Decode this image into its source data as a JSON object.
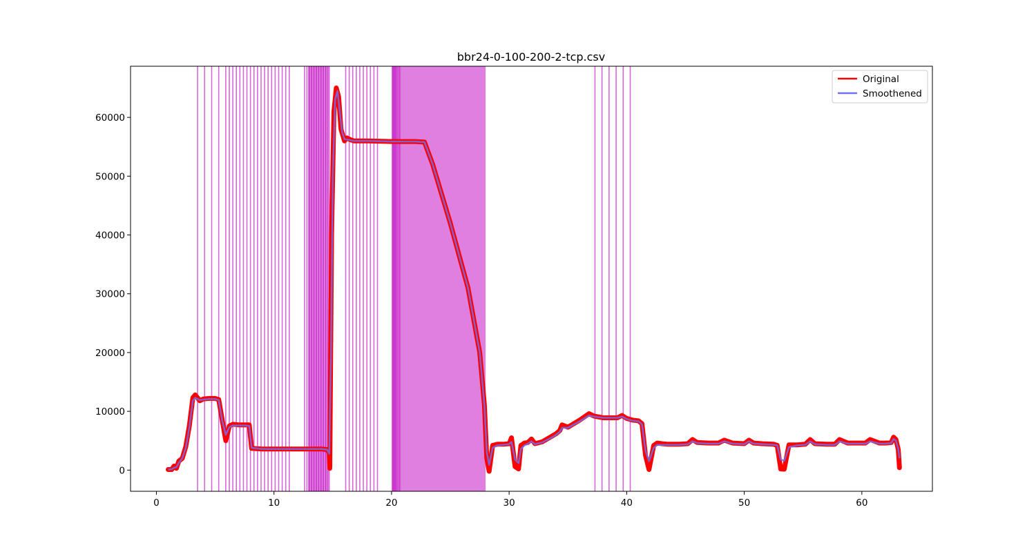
{
  "chart_data": {
    "type": "line",
    "title": "bbr24-0-100-200-2-tcp.csv",
    "xlabel": "",
    "ylabel": "",
    "xlim": [
      -2.2,
      66
    ],
    "ylim": [
      -3600,
      68700
    ],
    "x_ticks": [
      0,
      10,
      20,
      30,
      40,
      50,
      60
    ],
    "y_ticks": [
      0,
      10000,
      20000,
      30000,
      40000,
      50000,
      60000
    ],
    "grid": false,
    "legend": {
      "placement": "top-right",
      "entries": [
        "Original",
        "Smoothened"
      ]
    },
    "colors": {
      "original": "#ff0000",
      "smoothened": "#6f6ff0",
      "markers": "#bf00bf",
      "overlap": "#800080"
    },
    "series": [
      {
        "name": "Original",
        "x": [
          1.0,
          1.3,
          1.5,
          1.7,
          1.9,
          2.2,
          2.5,
          2.8,
          3.1,
          3.3,
          3.5,
          3.7,
          4.0,
          4.5,
          5.0,
          5.3,
          5.6,
          5.9,
          6.2,
          6.5,
          7.0,
          7.5,
          7.9,
          8.1,
          8.5,
          9.0,
          10.0,
          11.0,
          12.0,
          13.0,
          14.0,
          14.5,
          14.7,
          14.75,
          14.9,
          15.1,
          15.3,
          15.5,
          15.7,
          16.0,
          16.2,
          16.5,
          16.8,
          17.0,
          18.0,
          20.0,
          22.0,
          22.8,
          23.5,
          25.0,
          26.5,
          27.5,
          27.9,
          28.1,
          28.3,
          28.6,
          29.0,
          29.5,
          30.0,
          30.2,
          30.5,
          30.8,
          31.0,
          31.3,
          31.6,
          31.9,
          32.2,
          32.8,
          33.5,
          34.0,
          34.3,
          34.5,
          35.0,
          36.0,
          36.8,
          37.2,
          38.0,
          38.8,
          39.2,
          39.6,
          40.0,
          40.5,
          41.0,
          41.3,
          41.6,
          41.9,
          42.3,
          42.6,
          43.0,
          43.5,
          44.5,
          45.2,
          45.6,
          46.0,
          47.0,
          47.8,
          48.3,
          49.0,
          50.0,
          50.4,
          50.8,
          51.5,
          52.5,
          52.8,
          53.1,
          53.4,
          53.8,
          54.5,
          55.2,
          55.6,
          56.0,
          57.0,
          57.7,
          58.1,
          58.8,
          60.0,
          60.3,
          60.7,
          61.5,
          62.0,
          62.5,
          62.7,
          62.9,
          63.1,
          63.2
        ],
        "y": [
          100,
          100,
          700,
          300,
          1500,
          2000,
          4000,
          7500,
          12300,
          12800,
          12300,
          11800,
          12100,
          12200,
          12200,
          12000,
          8500,
          5000,
          7500,
          7800,
          7700,
          7700,
          7700,
          3700,
          3650,
          3600,
          3600,
          3600,
          3600,
          3600,
          3600,
          3500,
          3000,
          300,
          40000,
          61000,
          65000,
          63500,
          58000,
          56000,
          56500,
          56200,
          56000,
          56000,
          56000,
          55900,
          55900,
          55800,
          52000,
          42000,
          31000,
          20000,
          11000,
          2000,
          -200,
          4200,
          4400,
          4400,
          4500,
          5500,
          600,
          200,
          4200,
          4600,
          4700,
          5300,
          4500,
          4800,
          5600,
          6200,
          6700,
          7700,
          7300,
          8500,
          9600,
          9200,
          8900,
          8900,
          8900,
          9300,
          8800,
          8500,
          8400,
          7900,
          2500,
          100,
          4200,
          4600,
          4500,
          4400,
          4400,
          4500,
          5200,
          4700,
          4600,
          4600,
          5100,
          4600,
          4500,
          5100,
          4600,
          4500,
          4400,
          4200,
          200,
          150,
          4300,
          4300,
          4400,
          5200,
          4500,
          4400,
          4400,
          5200,
          4600,
          4600,
          4600,
          5200,
          4600,
          4600,
          4700,
          5600,
          5200,
          3500,
          400
        ]
      },
      {
        "name": "Smoothened",
        "x": [
          1.0,
          1.3,
          1.5,
          1.7,
          1.9,
          2.2,
          2.5,
          2.8,
          3.1,
          3.3,
          3.5,
          3.7,
          4.0,
          4.5,
          5.0,
          5.3,
          5.6,
          5.9,
          6.2,
          6.5,
          7.0,
          7.5,
          7.9,
          8.1,
          8.5,
          9.0,
          10.0,
          11.0,
          12.0,
          13.0,
          14.0,
          14.5,
          14.7,
          14.85,
          15.0,
          15.2,
          15.4,
          15.6,
          15.8,
          16.0,
          16.3,
          16.8,
          17.0,
          18.0,
          20.0,
          22.0,
          22.8,
          23.5,
          25.0,
          26.5,
          27.5,
          27.9,
          28.1,
          28.3,
          28.6,
          29.0,
          29.5,
          30.0,
          30.2,
          30.5,
          30.8,
          31.0,
          31.3,
          31.6,
          31.9,
          32.2,
          32.8,
          33.5,
          34.0,
          34.3,
          34.5,
          35.0,
          36.0,
          36.8,
          37.2,
          38.0,
          38.8,
          39.2,
          39.6,
          40.0,
          40.5,
          41.0,
          41.3,
          41.6,
          41.9,
          42.3,
          42.6,
          43.0,
          43.5,
          44.5,
          45.2,
          45.6,
          46.0,
          47.0,
          47.8,
          48.3,
          49.0,
          50.0,
          50.4,
          50.8,
          51.5,
          52.5,
          52.8,
          53.1,
          53.4,
          53.8,
          54.5,
          55.2,
          55.6,
          56.0,
          57.0,
          57.7,
          58.1,
          58.8,
          60.0,
          60.3,
          60.7,
          61.5,
          62.0,
          62.5,
          62.7,
          62.9,
          63.1,
          63.2
        ],
        "y": [
          100,
          150,
          400,
          500,
          1200,
          2000,
          3800,
          7200,
          11800,
          12300,
          12100,
          11900,
          12000,
          12100,
          12100,
          11900,
          8400,
          6000,
          7300,
          7600,
          7600,
          7600,
          7500,
          3800,
          3700,
          3600,
          3600,
          3600,
          3600,
          3600,
          3600,
          3500,
          2800,
          20000,
          50000,
          63000,
          64500,
          61000,
          57500,
          56300,
          56200,
          56000,
          56000,
          56000,
          55900,
          55900,
          55800,
          52000,
          42000,
          31000,
          20000,
          11000,
          3000,
          900,
          3800,
          4200,
          4300,
          4400,
          4800,
          1800,
          1200,
          3600,
          4200,
          4500,
          4900,
          4400,
          4700,
          5400,
          6000,
          6500,
          7200,
          7200,
          8300,
          9300,
          9100,
          8900,
          8900,
          8900,
          9100,
          8700,
          8400,
          8300,
          7800,
          3300,
          1500,
          3800,
          4300,
          4300,
          4300,
          4300,
          4400,
          4900,
          4600,
          4500,
          4500,
          4900,
          4500,
          4400,
          4900,
          4500,
          4400,
          4300,
          4200,
          1800,
          1600,
          3900,
          4200,
          4300,
          4900,
          4400,
          4300,
          4300,
          4900,
          4500,
          4500,
          4500,
          4900,
          4500,
          4500,
          4600,
          5300,
          5000,
          3600,
          2000
        ]
      }
    ],
    "vertical_markers": [
      3.5,
      4.1,
      4.7,
      5.3,
      5.9,
      6.2,
      6.5,
      6.8,
      7.1,
      7.4,
      7.7,
      8.0,
      8.3,
      8.6,
      8.9,
      9.2,
      9.5,
      9.8,
      10.1,
      10.4,
      10.7,
      11.0,
      11.3,
      12.6,
      12.8,
      13.0,
      13.2,
      13.4,
      13.6,
      13.8,
      14.0,
      14.2,
      14.4,
      14.6,
      14.7,
      16.1,
      16.4,
      16.7,
      17.0,
      17.3,
      17.6,
      17.9,
      18.2,
      18.5,
      18.8,
      20.1,
      20.2,
      20.3,
      20.4,
      20.55,
      20.7,
      37.3,
      37.9,
      38.5,
      39.1,
      39.7,
      40.3
    ],
    "shaded_regions": [
      [
        12.9,
        14.6
      ],
      [
        20.0,
        28.0
      ]
    ]
  }
}
